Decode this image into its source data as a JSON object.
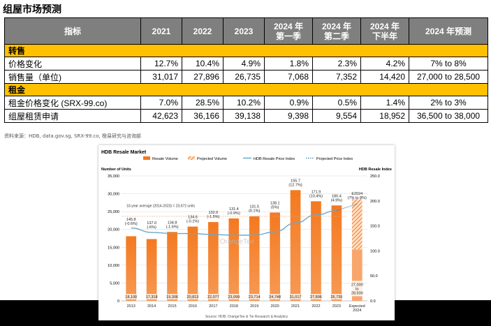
{
  "page": {
    "title": "组屋市场预测",
    "source_note": "资料来源：HDB, data.gov.sg, SRX-99.co, 橙易研究与咨询部"
  },
  "table": {
    "headers": [
      {
        "lines": [
          "指标"
        ]
      },
      {
        "lines": [
          "2021"
        ]
      },
      {
        "lines": [
          "2022"
        ]
      },
      {
        "lines": [
          "2023"
        ]
      },
      {
        "lines": [
          "2024 年",
          "第一季"
        ]
      },
      {
        "lines": [
          "2024 年",
          "第二季"
        ]
      },
      {
        "lines": [
          "2024 年",
          "下半年"
        ]
      },
      {
        "lines": [
          "2024 年预测"
        ]
      }
    ],
    "sections": [
      {
        "title": "转售",
        "rows": [
          {
            "label": "价格变化",
            "values": [
              "12.7%",
              "10.4%",
              "4.9%",
              "1.8%",
              "2.3%",
              "4.2%"
            ],
            "forecast": "7% to 8%"
          },
          {
            "label": "销售量（单位)",
            "values": [
              "31,017",
              "27,896",
              "26,735",
              "7,068",
              "7,352",
              "14,420"
            ],
            "forecast": "27,000 to 28,500"
          }
        ]
      },
      {
        "title": "租金",
        "rows": [
          {
            "label": "租金价格变化 (SRX-99.co)",
            "values": [
              "7.0%",
              "28.5%",
              "10.2%",
              "0.9%",
              "0.5%",
              "1.4%"
            ],
            "forecast": "2% to 3%"
          },
          {
            "label": "组屋租赁申请",
            "values": [
              "42,623",
              "36,166",
              "39,138",
              "9,398",
              "9,554",
              "18,952"
            ],
            "forecast": "36,500 to 38,000"
          }
        ]
      }
    ]
  },
  "chart_data": {
    "type": "bar",
    "title": "HDB Resale Market",
    "legend": [
      "Resale Volume",
      "Projected Volume",
      "HDB Resale Price Index",
      "Projected Price Index"
    ],
    "legend_position": "top",
    "ylabel_left": "Number of Units",
    "ylabel_right": "HDB Resale Index",
    "ylim_left": [
      0,
      35000
    ],
    "ylim_right": [
      0,
      250
    ],
    "left_ticks": [
      "0",
      "5,000",
      "10,000",
      "15,000",
      "20,000",
      "25,000",
      "30,000",
      "35,000"
    ],
    "right_ticks": [
      "0.0",
      "50.0",
      "100.0",
      "150.0",
      "200.0",
      "250.0"
    ],
    "categories": [
      "2013",
      "2014",
      "2015",
      "2016",
      "2017",
      "2018",
      "2019",
      "2020",
      "2021",
      "2022",
      "2023",
      "Expected\n2024"
    ],
    "volume": [
      18100,
      17318,
      19306,
      20813,
      22077,
      23099,
      23714,
      24748,
      31017,
      27896,
      26735,
      null
    ],
    "volume_labels": [
      "18,100",
      "17,318",
      "19,306",
      "20,813",
      "22,077",
      "23,099",
      "23,714",
      "24,748",
      "31,017",
      "27,896",
      "26,735",
      "27,000\nto\n28,500"
    ],
    "projected_volume_range": [
      27000,
      28500
    ],
    "expected_hatch_base": 14420,
    "price_index": [
      145.8,
      137.0,
      134.8,
      134.6,
      132.6,
      131.4,
      131.5,
      138.1,
      155.7,
      171.9,
      180.4,
      null
    ],
    "price_labels": [
      "145.8\n(-0.6%)",
      "137.0\n(-6%)",
      "134.8\n(-1.6%)",
      "134.6\n(-0.1%)",
      "132.6\n(-1.5%)",
      "131.4\n(-0.9%)",
      "131.5\n(0.1%)",
      "138.1\n(5%)",
      "155.7\n(12.7%)",
      "171.9\n(10.4%)",
      "180.4\n(4.9%)",
      "E2024\n(7% to 8%)"
    ],
    "projected_price_index": 194,
    "average_note": "10-year average (2014-2023) = 23,672 units",
    "average_value": 23672,
    "watermark": "OrangeTee",
    "source": "Source: HDB, OrangeTee & Tie Research & Analytics",
    "colors": {
      "bar": "#f47920",
      "bar_light": "#f9a66c",
      "line": "#6aa9c9",
      "projected_line": "#4a7fa0",
      "grid": "#d9d9d9"
    }
  }
}
